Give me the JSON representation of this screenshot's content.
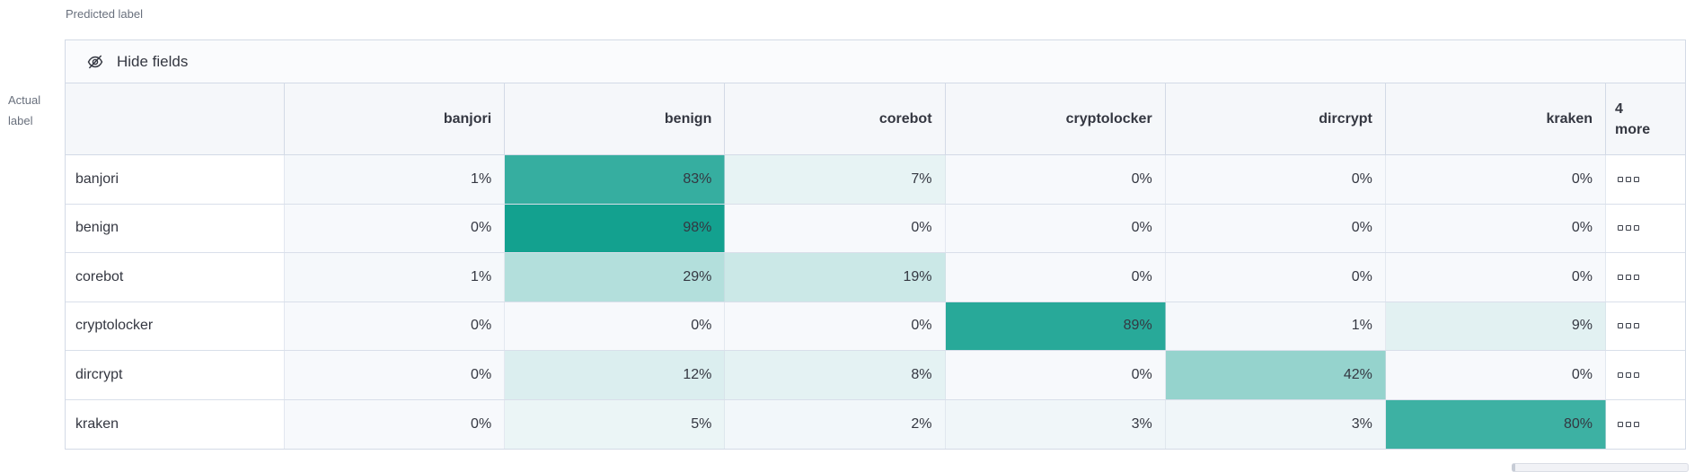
{
  "axes": {
    "predicted_label": "Predicted label",
    "actual_label_line1": "Actual",
    "actual_label_line2": "label"
  },
  "toolbar": {
    "hide_fields_label": "Hide fields",
    "icon": "eye-closed-icon"
  },
  "more_column": {
    "header_line1": "4",
    "header_line2": "more",
    "cell_icon": "boxes-horizontal-icon"
  },
  "colors": {
    "table_border": "#d3dae6",
    "header_bg": "#f5f7fa",
    "text": "#343741",
    "muted_text": "#69707d",
    "heat_min": "#f7f9fc",
    "heat_max": "#0e9f8d"
  },
  "chart_data": {
    "type": "heatmap",
    "xlabel": "Predicted label",
    "ylabel": "Actual label",
    "columns": [
      "banjori",
      "benign",
      "corebot",
      "cryptolocker",
      "dircrypt",
      "kraken"
    ],
    "columns_truncated_label": "4 more",
    "rows": [
      "banjori",
      "benign",
      "corebot",
      "cryptolocker",
      "dircrypt",
      "kraken"
    ],
    "unit": "%",
    "values_percent": [
      [
        1,
        83,
        7,
        0,
        0,
        0
      ],
      [
        0,
        98,
        0,
        0,
        0,
        0
      ],
      [
        1,
        29,
        19,
        0,
        0,
        0
      ],
      [
        0,
        0,
        0,
        89,
        1,
        9
      ],
      [
        0,
        12,
        8,
        0,
        42,
        0
      ],
      [
        0,
        5,
        2,
        3,
        3,
        80
      ]
    ],
    "color_scale": {
      "min": "#f7f9fc",
      "max": "#0e9f8d",
      "domain": [
        0,
        100
      ]
    },
    "legend": "off",
    "grid": "on"
  }
}
